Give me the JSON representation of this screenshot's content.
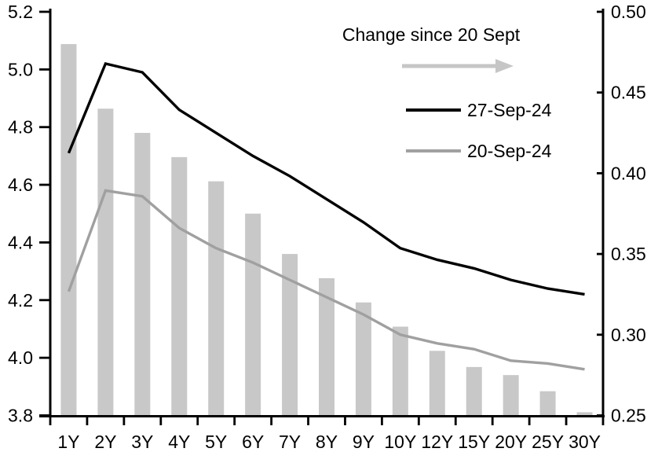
{
  "title": "Change since 20 Sept",
  "legend": {
    "items": [
      {
        "label": "27-Sep-24",
        "color": "#000000"
      },
      {
        "label": "20-Sep-24",
        "color": "#a0a0a0"
      }
    ]
  },
  "colors": {
    "bar": "#c8c8c8",
    "line_27sep": "#000000",
    "line_20sep": "#a0a0a0",
    "arrow": "#c6c6c6",
    "axis": "#000000",
    "text": "#000000",
    "background": "#ffffff"
  },
  "chart_data": {
    "type": "combo",
    "title": "Change since 20 Sept",
    "categories": [
      "1Y",
      "2Y",
      "3Y",
      "4Y",
      "5Y",
      "6Y",
      "7Y",
      "8Y",
      "9Y",
      "10Y",
      "12Y",
      "15Y",
      "20Y",
      "25Y",
      "30Y"
    ],
    "series": [
      {
        "name": "Change since 20 Sept",
        "type": "bar",
        "axis": "right",
        "color": "#c8c8c8",
        "values": [
          0.48,
          0.44,
          0.425,
          0.41,
          0.395,
          0.375,
          0.35,
          0.335,
          0.32,
          0.305,
          0.29,
          0.28,
          0.275,
          0.265,
          0.252
        ]
      },
      {
        "name": "27-Sep-24",
        "type": "line",
        "axis": "left",
        "color": "#000000",
        "values": [
          4.71,
          5.02,
          4.99,
          4.86,
          4.78,
          4.7,
          4.63,
          4.55,
          4.47,
          4.38,
          4.34,
          4.31,
          4.27,
          4.24,
          4.22
        ]
      },
      {
        "name": "20-Sep-24",
        "type": "line",
        "axis": "left",
        "color": "#a0a0a0",
        "values": [
          4.23,
          4.58,
          4.56,
          4.45,
          4.38,
          4.33,
          4.27,
          4.21,
          4.15,
          4.08,
          4.05,
          4.03,
          3.99,
          3.98,
          3.96
        ]
      }
    ],
    "left_axis": {
      "min": 3.8,
      "max": 5.2,
      "tick_step": 0.2,
      "tick_labels": [
        "5.2",
        "5.0",
        "4.8",
        "4.6",
        "4.4",
        "4.2",
        "4.0",
        "3.8"
      ]
    },
    "right_axis": {
      "min": 0.25,
      "max": 0.5,
      "tick_step": 0.05,
      "tick_labels": [
        "0.50",
        "0.45",
        "0.40",
        "0.35",
        "0.30",
        "0.25"
      ]
    },
    "grid": false,
    "legend_position": "top-center-inside"
  }
}
